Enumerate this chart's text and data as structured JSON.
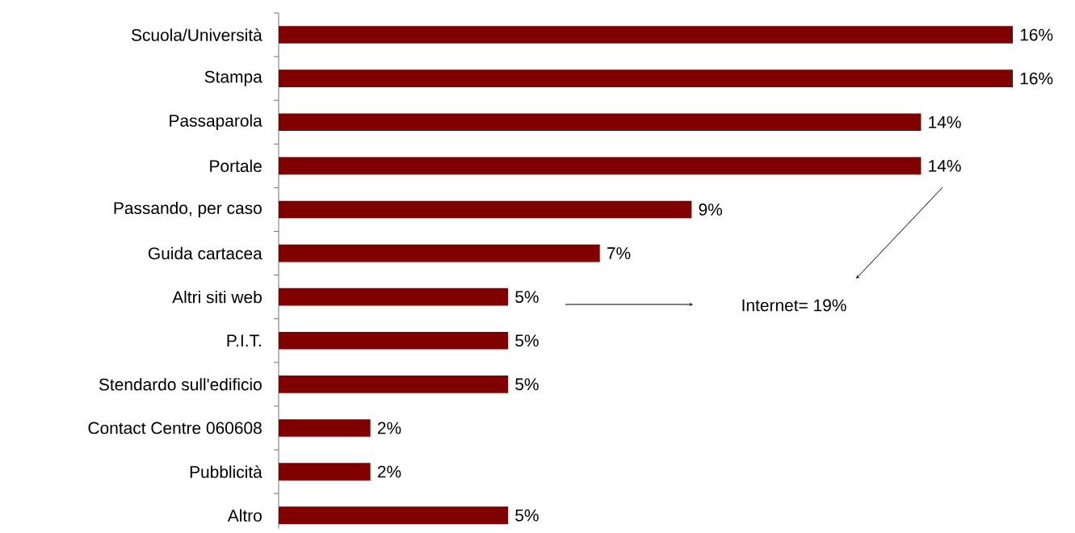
{
  "chart_data": {
    "type": "bar",
    "orientation": "horizontal",
    "categories": [
      "Scuola/Università",
      "Stampa",
      "Passaparola",
      "Portale",
      "Passando, per caso",
      "Guida cartacea",
      "Altri siti web",
      "P.I.T.",
      "Stendardo sull'edificio",
      "Contact Centre 060608",
      "Pubblicità",
      "Altro"
    ],
    "values": [
      16,
      16,
      14,
      14,
      9,
      7,
      5,
      5,
      5,
      2,
      2,
      5
    ],
    "value_labels": [
      "16%",
      "16%",
      "14%",
      "14%",
      "9%",
      "7%",
      "5%",
      "5%",
      "5%",
      "2%",
      "2%",
      "5%"
    ],
    "color": "#800000",
    "annotations": [
      "Internet= 19%"
    ]
  }
}
